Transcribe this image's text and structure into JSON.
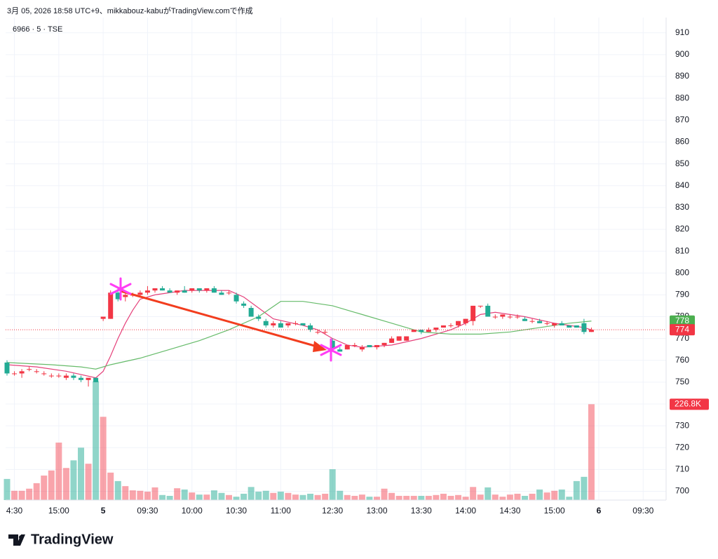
{
  "chart_data": {
    "type": "candlestick",
    "title": "3月 05, 2026 18:58 UTC+9、mikkabouz-kabuがTradingView.comで作成",
    "subtitle": "6966 · 5 · TSE",
    "brand": "TradingView",
    "up_color": "#f23645",
    "down_color": "#22ab94",
    "ohlc": {
      "open": [
        759,
        754,
        754,
        756,
        755,
        754,
        753,
        753,
        752,
        753,
        752,
        751,
        752,
        779,
        779,
        791,
        789,
        790,
        790,
        791,
        792,
        793,
        792,
        791,
        792,
        792,
        793,
        792,
        793,
        791,
        791,
        790,
        786,
        784,
        780,
        778,
        776,
        777,
        776,
        777,
        777,
        776,
        773,
        773,
        769,
        765,
        765,
        767,
        765,
        767,
        766,
        767,
        768,
        769,
        769,
        773,
        774,
        773,
        774,
        775,
        776,
        776,
        777,
        778,
        785,
        785,
        780,
        780,
        780,
        780,
        779,
        778,
        778,
        777,
        776,
        777,
        776,
        776,
        777,
        773
      ],
      "high": [
        760,
        755,
        756,
        757,
        756,
        755,
        754,
        754,
        754,
        754,
        753,
        752,
        752,
        780,
        792,
        793,
        791,
        791,
        792,
        794,
        793,
        794,
        793,
        792,
        794,
        793,
        793,
        793,
        794,
        792,
        792,
        791,
        787,
        785,
        781,
        779,
        778,
        778,
        777,
        778,
        777,
        777,
        774,
        774,
        770,
        766,
        767,
        768,
        767,
        767,
        767,
        768,
        771,
        771,
        771,
        774,
        774,
        775,
        775,
        776,
        777,
        778,
        779,
        785,
        785,
        786,
        781,
        781,
        781,
        781,
        780,
        779,
        779,
        778,
        777,
        778,
        776,
        776,
        779,
        775
      ],
      "low": [
        753,
        753,
        752,
        755,
        754,
        753,
        752,
        752,
        751,
        751,
        750,
        748,
        750,
        778,
        779,
        787,
        787,
        789,
        789,
        790,
        791,
        792,
        791,
        790,
        791,
        791,
        791,
        791,
        791,
        790,
        790,
        786,
        784,
        780,
        778,
        775,
        775,
        775,
        775,
        776,
        776,
        773,
        772,
        772,
        764,
        764,
        765,
        766,
        764,
        766,
        765,
        766,
        768,
        769,
        769,
        773,
        772,
        773,
        773,
        775,
        775,
        775,
        776,
        776,
        784,
        780,
        779,
        779,
        779,
        779,
        778,
        777,
        777,
        776,
        775,
        776,
        775,
        775,
        772,
        773
      ],
      "close": [
        754,
        754,
        755,
        756,
        755,
        754,
        753,
        753,
        753,
        752,
        751,
        752,
        750,
        780,
        791,
        788,
        790,
        790,
        791,
        792,
        793,
        792,
        791,
        792,
        791,
        793,
        792,
        793,
        791,
        790,
        791,
        787,
        785,
        780,
        779,
        776,
        777,
        775,
        777,
        777,
        776,
        774,
        773,
        773,
        765,
        764,
        767,
        767,
        766,
        766,
        767,
        768,
        770,
        771,
        771,
        774,
        773,
        774,
        775,
        776,
        776,
        778,
        779,
        785,
        785,
        780,
        780,
        781,
        780,
        780,
        778,
        778,
        777,
        777,
        777,
        776,
        775,
        775,
        773,
        774
      ]
    },
    "volume": {
      "values": [
        50,
        22,
        22,
        27,
        40,
        58,
        70,
        136,
        76,
        94,
        124,
        86,
        281,
        197,
        65,
        45,
        33,
        23,
        22,
        20,
        30,
        12,
        10,
        28,
        25,
        18,
        13,
        13,
        23,
        17,
        12,
        8,
        15,
        31,
        20,
        22,
        17,
        20,
        17,
        13,
        12,
        15,
        12,
        15,
        73,
        22,
        12,
        10,
        13,
        8,
        8,
        27,
        17,
        10,
        10,
        10,
        10,
        10,
        12,
        15,
        10,
        12,
        8,
        31,
        13,
        30,
        13,
        8,
        13,
        15,
        10,
        15,
        25,
        18,
        22,
        25,
        8,
        45,
        55,
        226.8
      ],
      "last_value_label": "226.8K",
      "vlim": [
        0,
        375
      ]
    },
    "lines": [
      {
        "color": "#e5407a",
        "x": [
          0,
          4,
          8,
          12,
          13,
          14,
          15,
          16,
          17,
          18,
          20,
          24,
          30,
          32,
          34,
          36,
          40,
          42,
          44,
          46,
          48,
          52,
          56,
          60,
          62,
          64,
          66,
          70,
          74,
          78,
          79
        ],
        "values": [
          758,
          757,
          755,
          752,
          755,
          762,
          770,
          777,
          783,
          788,
          790,
          792,
          792,
          789,
          784,
          779,
          776,
          774,
          770,
          767,
          766,
          767,
          770,
          774,
          777,
          781,
          782,
          780,
          777,
          775,
          774
        ]
      },
      {
        "color": "#66bb6a",
        "x": [
          0,
          6,
          10,
          12,
          14,
          18,
          22,
          26,
          30,
          34,
          37,
          40,
          44,
          48,
          52,
          56,
          60,
          64,
          68,
          72,
          76,
          79
        ],
        "values": [
          759,
          758,
          757,
          756,
          758,
          761,
          765,
          769,
          774,
          780,
          787,
          787,
          785,
          781,
          777,
          773,
          772,
          772,
          773,
          775,
          777,
          778
        ]
      }
    ],
    "price_labels": [
      {
        "value": 778,
        "color": "#4caf50"
      },
      {
        "value": 774,
        "color": "#f23645"
      }
    ],
    "ylim": [
      696,
      917
    ],
    "yticks": [
      910,
      900,
      890,
      880,
      870,
      860,
      850,
      840,
      830,
      820,
      810,
      800,
      790,
      780,
      770,
      760,
      750,
      740,
      730,
      720,
      710,
      700
    ],
    "xticks": [
      {
        "value": 1,
        "label": "4:30"
      },
      {
        "value": 7,
        "label": "15:00"
      },
      {
        "value": 13,
        "label": "5",
        "bold": true
      },
      {
        "value": 19,
        "label": "09:30"
      },
      {
        "value": 25,
        "label": "10:00"
      },
      {
        "value": 31,
        "label": "10:30"
      },
      {
        "value": 37,
        "label": "11:00"
      },
      {
        "value": 44,
        "label": "12:30"
      },
      {
        "value": 50,
        "label": "13:00"
      },
      {
        "value": 56,
        "label": "13:30"
      },
      {
        "value": 62,
        "label": "14:00"
      },
      {
        "value": 68,
        "label": "14:30"
      },
      {
        "value": 74,
        "label": "15:00"
      },
      {
        "value": 80,
        "label": "6",
        "bold": true
      },
      {
        "value": 86,
        "label": "09:30"
      }
    ],
    "grid": true
  }
}
